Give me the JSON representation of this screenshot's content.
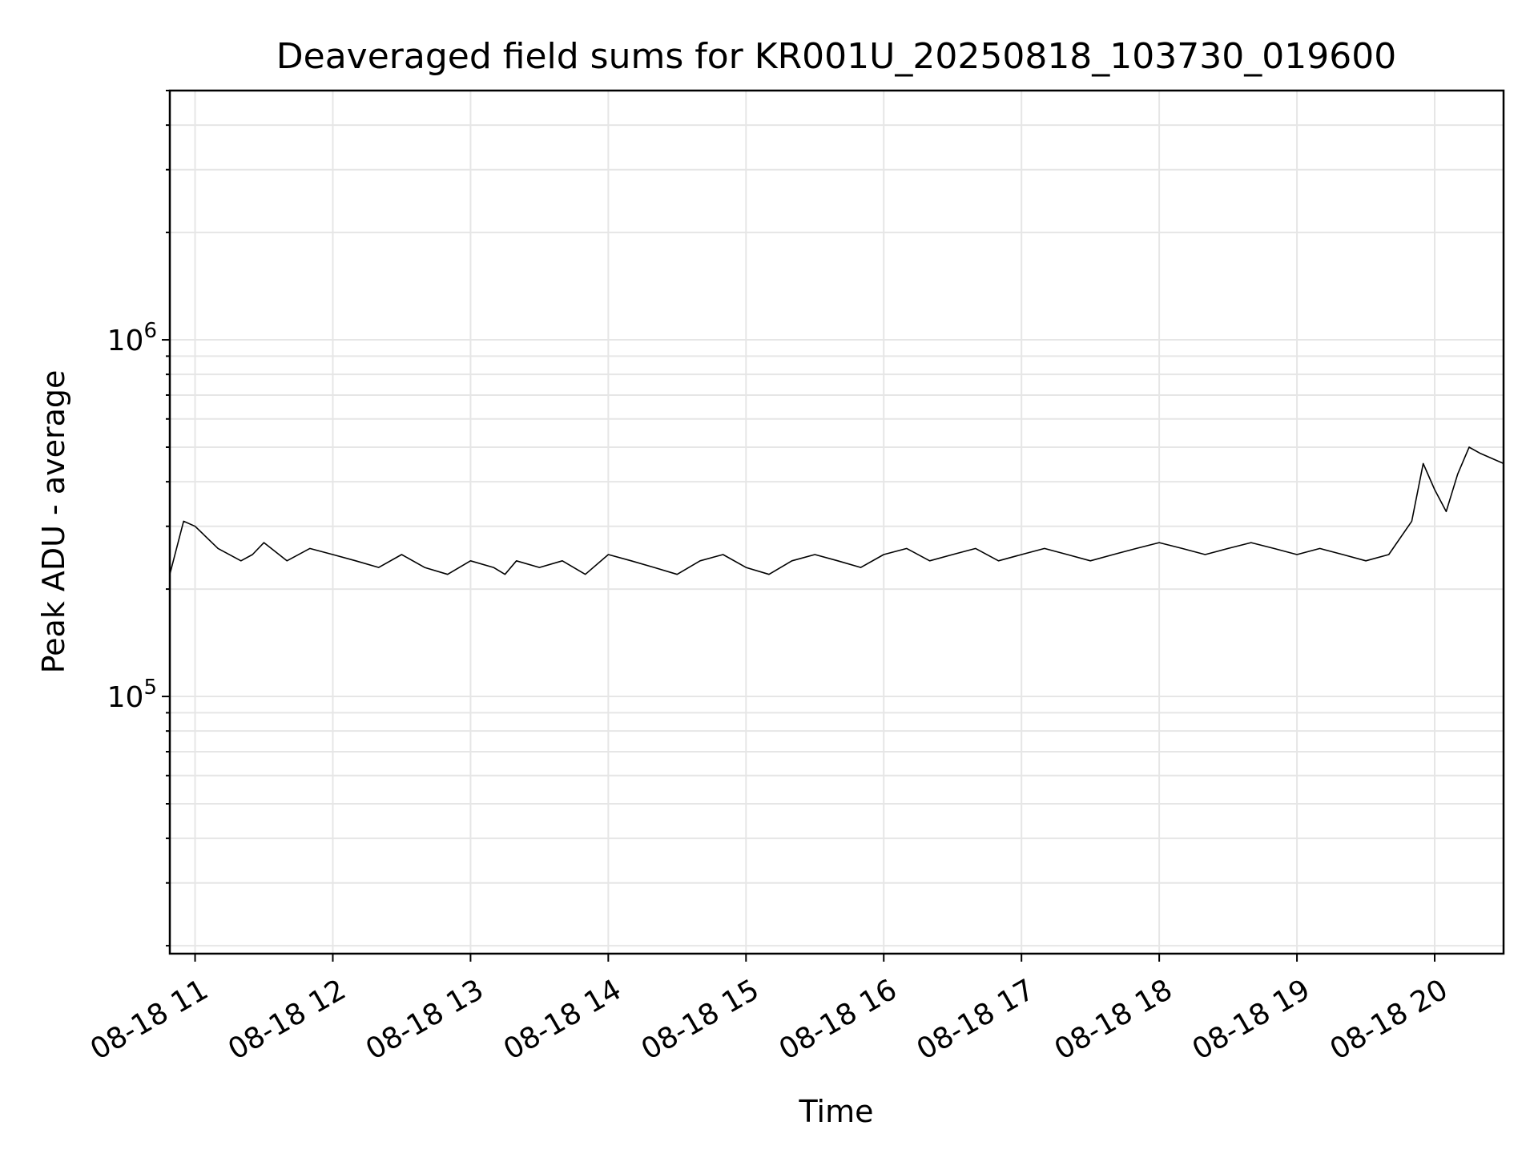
{
  "chart_data": {
    "type": "line",
    "title": "Deaveraged field sums for KR001U_20250818_103730_019600",
    "xlabel": "Time",
    "ylabel": "Peak ADU - average",
    "x_range": [
      "2025-08-18T10:49",
      "2025-08-18T20:30"
    ],
    "ylim": [
      19000,
      5000000
    ],
    "yscale": "log",
    "grid": true,
    "legend": "none",
    "line_color": "#000000",
    "x_ticks": [
      {
        "t": "2025-08-18T11:00",
        "label": "08-18 11"
      },
      {
        "t": "2025-08-18T12:00",
        "label": "08-18 12"
      },
      {
        "t": "2025-08-18T13:00",
        "label": "08-18 13"
      },
      {
        "t": "2025-08-18T14:00",
        "label": "08-18 14"
      },
      {
        "t": "2025-08-18T15:00",
        "label": "08-18 15"
      },
      {
        "t": "2025-08-18T16:00",
        "label": "08-18 16"
      },
      {
        "t": "2025-08-18T17:00",
        "label": "08-18 17"
      },
      {
        "t": "2025-08-18T18:00",
        "label": "08-18 18"
      },
      {
        "t": "2025-08-18T19:00",
        "label": "08-18 19"
      },
      {
        "t": "2025-08-18T20:00",
        "label": "08-18 20"
      }
    ],
    "y_ticks": [
      {
        "value": 100000,
        "base": "10",
        "exp": "5"
      },
      {
        "value": 1000000,
        "base": "10",
        "exp": "6"
      }
    ],
    "series": [
      {
        "x": [
          "2025-08-18T10:49",
          "2025-08-18T10:55",
          "2025-08-18T11:00",
          "2025-08-18T11:10",
          "2025-08-18T11:20",
          "2025-08-18T11:25",
          "2025-08-18T11:30",
          "2025-08-18T11:40",
          "2025-08-18T11:50",
          "2025-08-18T12:00",
          "2025-08-18T12:10",
          "2025-08-18T12:20",
          "2025-08-18T12:30",
          "2025-08-18T12:40",
          "2025-08-18T12:50",
          "2025-08-18T13:00",
          "2025-08-18T13:10",
          "2025-08-18T13:15",
          "2025-08-18T13:20",
          "2025-08-18T13:30",
          "2025-08-18T13:40",
          "2025-08-18T13:50",
          "2025-08-18T14:00",
          "2025-08-18T14:10",
          "2025-08-18T14:20",
          "2025-08-18T14:30",
          "2025-08-18T14:40",
          "2025-08-18T14:50",
          "2025-08-18T15:00",
          "2025-08-18T15:10",
          "2025-08-18T15:20",
          "2025-08-18T15:30",
          "2025-08-18T15:40",
          "2025-08-18T15:50",
          "2025-08-18T16:00",
          "2025-08-18T16:10",
          "2025-08-18T16:20",
          "2025-08-18T16:30",
          "2025-08-18T16:40",
          "2025-08-18T16:50",
          "2025-08-18T17:00",
          "2025-08-18T17:10",
          "2025-08-18T17:20",
          "2025-08-18T17:30",
          "2025-08-18T17:40",
          "2025-08-18T17:50",
          "2025-08-18T18:00",
          "2025-08-18T18:10",
          "2025-08-18T18:20",
          "2025-08-18T18:30",
          "2025-08-18T18:40",
          "2025-08-18T18:50",
          "2025-08-18T19:00",
          "2025-08-18T19:10",
          "2025-08-18T19:20",
          "2025-08-18T19:30",
          "2025-08-18T19:40",
          "2025-08-18T19:50",
          "2025-08-18T19:55",
          "2025-08-18T20:00",
          "2025-08-18T20:05",
          "2025-08-18T20:10",
          "2025-08-18T20:15",
          "2025-08-18T20:20",
          "2025-08-18T20:30"
        ],
        "y": [
          220000,
          310000,
          300000,
          260000,
          240000,
          250000,
          270000,
          240000,
          260000,
          250000,
          240000,
          230000,
          250000,
          230000,
          220000,
          240000,
          230000,
          220000,
          240000,
          230000,
          240000,
          220000,
          250000,
          240000,
          230000,
          220000,
          240000,
          250000,
          230000,
          220000,
          240000,
          250000,
          240000,
          230000,
          250000,
          260000,
          240000,
          250000,
          260000,
          240000,
          250000,
          260000,
          250000,
          240000,
          250000,
          260000,
          270000,
          260000,
          250000,
          260000,
          270000,
          260000,
          250000,
          260000,
          250000,
          240000,
          250000,
          310000,
          450000,
          380000,
          330000,
          420000,
          500000,
          480000,
          450000
        ]
      }
    ]
  }
}
